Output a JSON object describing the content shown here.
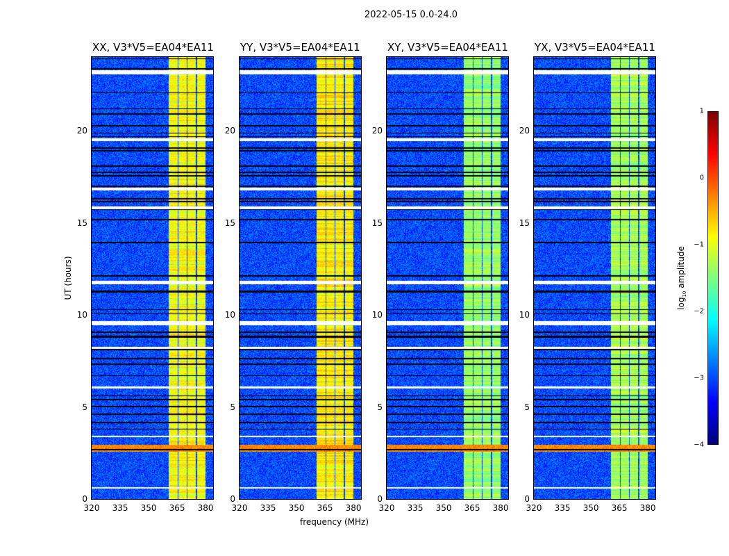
{
  "chart_data": {
    "type": "heatmap",
    "title": "2022-05-15 0.0-24.0",
    "xlabel": "frequency (MHz)",
    "ylabel": "UT (hours)",
    "xlim": [
      320,
      384
    ],
    "ylim": [
      0,
      24
    ],
    "xticks": [
      "320",
      "335",
      "350",
      "365",
      "380"
    ],
    "xtick_values": [
      320,
      335,
      350,
      365,
      380
    ],
    "yticks": [
      "0",
      "5",
      "10",
      "15",
      "20"
    ],
    "ytick_values": [
      0,
      5,
      10,
      15,
      20
    ],
    "panels": [
      {
        "title": "XX, V3*V5=EA04*EA11",
        "band_level": -0.9
      },
      {
        "title": "YY, V3*V5=EA04*EA11",
        "band_level": -0.8
      },
      {
        "title": "XY, V3*V5=EA04*EA11",
        "band_level": -1.4
      },
      {
        "title": "YX, V3*V5=EA04*EA11",
        "band_level": -1.3
      }
    ],
    "background_level": -3.0,
    "bright_bands_mhz": [
      [
        360.5,
        365.2
      ],
      [
        365.8,
        370.0
      ],
      [
        370.6,
        375.0
      ],
      [
        375.6,
        380.0
      ]
    ],
    "flagged_hours": [
      [
        23.05,
        23.3
      ],
      [
        19.45,
        19.6
      ],
      [
        16.75,
        16.9
      ],
      [
        15.75,
        15.9
      ],
      [
        11.65,
        11.85
      ],
      [
        9.45,
        9.65
      ],
      [
        8.15,
        8.25
      ],
      [
        6.0,
        6.1
      ],
      [
        3.35,
        3.45
      ],
      [
        0.55,
        0.65
      ]
    ],
    "rfi_hours": [
      [
        2.55,
        2.95
      ]
    ],
    "colorbar": {
      "label": "log₁₀ amplitude",
      "label_main": "log",
      "label_sub": "10",
      "label_rest": " amplitude",
      "ticks": [
        "1",
        "0",
        "−1",
        "−2",
        "−3",
        "−4"
      ],
      "tick_values": [
        1,
        0,
        -1,
        -2,
        -3,
        -4
      ],
      "range": [
        -4,
        1
      ],
      "colormap": "jet"
    }
  }
}
